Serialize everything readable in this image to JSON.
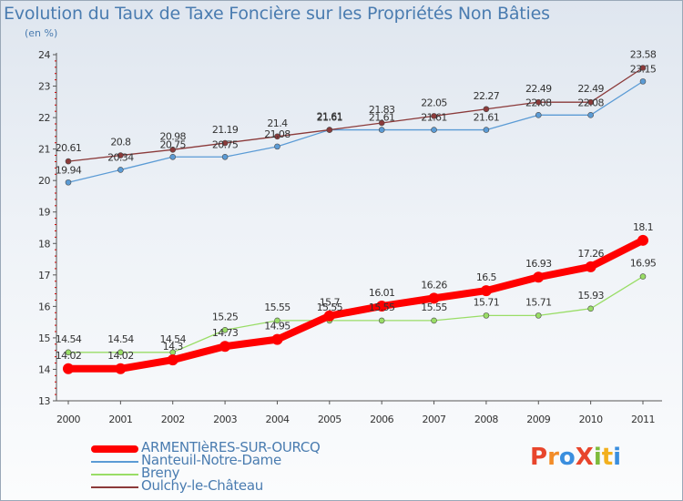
{
  "title": "Evolution du Taux de Taxe Foncière sur les Propriétés Non Bâties",
  "subtitle": "(en %)",
  "logo": {
    "text": "ProXiti",
    "letters": [
      {
        "ch": "P",
        "color": "#e8452c"
      },
      {
        "ch": "r",
        "color": "#f28c28"
      },
      {
        "ch": "o",
        "color": "#3a8ede"
      },
      {
        "ch": "X",
        "color": "#e8452c"
      },
      {
        "ch": "i",
        "color": "#7dbb3b"
      },
      {
        "ch": "t",
        "color": "#f2b01e"
      },
      {
        "ch": "i",
        "color": "#3a8ede"
      }
    ]
  },
  "chart_data": {
    "type": "line",
    "x": [
      "2000",
      "2001",
      "2002",
      "2003",
      "2004",
      "2005",
      "2006",
      "2007",
      "2008",
      "2009",
      "2010",
      "2011"
    ],
    "ylim": [
      13,
      24
    ],
    "yticks": [
      "13",
      "14",
      "15",
      "16",
      "17",
      "18",
      "19",
      "20",
      "21",
      "22",
      "23",
      "24"
    ],
    "grid": false,
    "legend_position": "bottom",
    "series": [
      {
        "name": "ARMENTIèRES-SUR-OURCQ",
        "color": "#ff0000",
        "width": 8,
        "marker": 6,
        "values": [
          14.02,
          14.02,
          14.3,
          14.73,
          14.95,
          15.7,
          16.01,
          16.26,
          16.5,
          16.93,
          17.26,
          18.1
        ],
        "labels": [
          "14.02",
          "14.02",
          "14.3",
          "14.73",
          "14.95",
          "15.7",
          "16.01",
          "16.26",
          "16.5",
          "16.93",
          "17.26",
          "18.1"
        ]
      },
      {
        "name": "Nanteuil-Notre-Dame",
        "color": "#5b9bd5",
        "width": 1.3,
        "marker": 3,
        "values": [
          19.94,
          20.34,
          20.75,
          20.75,
          21.08,
          21.61,
          21.61,
          21.61,
          21.61,
          22.08,
          22.08,
          23.15
        ],
        "labels": [
          "19.94",
          "20.34",
          "20.75",
          "20.75",
          "21.08",
          "21.61",
          "21.61",
          "21.61",
          "21.61",
          "22.08",
          "22.08",
          "23.15"
        ]
      },
      {
        "name": "Breny",
        "color": "#99dd66",
        "width": 1.3,
        "marker": 3,
        "values": [
          14.54,
          14.54,
          14.54,
          15.25,
          15.55,
          15.55,
          15.55,
          15.55,
          15.71,
          15.71,
          15.93,
          16.95
        ],
        "labels": [
          "14.54",
          "14.54",
          "14.54",
          "15.25",
          "15.55",
          "15.55",
          "15.55",
          "15.55",
          "15.71",
          "15.71",
          "15.93",
          "16.95"
        ]
      },
      {
        "name": "Oulchy-le-Château",
        "color": "#8b3a3a",
        "width": 1.3,
        "marker": 3,
        "values": [
          20.61,
          20.8,
          20.98,
          21.19,
          21.4,
          21.61,
          21.83,
          22.05,
          22.27,
          22.49,
          22.49,
          23.58
        ],
        "labels": [
          "20.61",
          "20.8",
          "20.98",
          "21.19",
          "21.4",
          "21.61",
          "21.83",
          "22.05",
          "22.27",
          "22.49",
          "22.49",
          "23.58"
        ]
      }
    ]
  }
}
